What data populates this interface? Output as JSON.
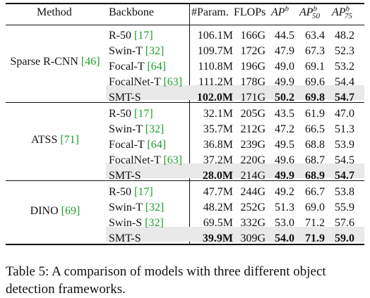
{
  "header": {
    "method": "Method",
    "backbone": "Backbone",
    "param": "#Param.",
    "flops": "FLOPs",
    "ap": "AP",
    "ap_sup": "b",
    "ap50": "AP",
    "ap50_sup": "b",
    "ap50_sub": "50",
    "ap75": "AP",
    "ap75_sup": "b",
    "ap75_sub": "75"
  },
  "groups": [
    {
      "method": "Sparse R-CNN",
      "method_cite": "[46]",
      "rows": [
        {
          "backbone": "R-50",
          "cite": "[17]",
          "param": "106.1M",
          "flops": "166G",
          "ap": "44.5",
          "ap50": "63.4",
          "ap75": "48.2"
        },
        {
          "backbone": "Swin-T",
          "cite": "[32]",
          "param": "109.7M",
          "flops": "172G",
          "ap": "47.9",
          "ap50": "67.3",
          "ap75": "52.3"
        },
        {
          "backbone": "Focal-T",
          "cite": "[64]",
          "param": "110.8M",
          "flops": "196G",
          "ap": "49.0",
          "ap50": "69.1",
          "ap75": "53.2"
        },
        {
          "backbone": "FocalNet-T",
          "cite": "[63]",
          "param": "111.2M",
          "flops": "178G",
          "ap": "49.9",
          "ap50": "69.6",
          "ap75": "54.4"
        },
        {
          "backbone": "SMT-S",
          "cite": "",
          "param": "102.0M",
          "flops": "171G",
          "ap": "50.2",
          "ap50": "69.8",
          "ap75": "54.7"
        }
      ]
    },
    {
      "method": "ATSS",
      "method_cite": "[71]",
      "rows": [
        {
          "backbone": "R-50",
          "cite": "[17]",
          "param": "32.1M",
          "flops": "205G",
          "ap": "43.5",
          "ap50": "61.9",
          "ap75": "47.0"
        },
        {
          "backbone": "Swin-T",
          "cite": "[32]",
          "param": "35.7M",
          "flops": "212G",
          "ap": "47.2",
          "ap50": "66.5",
          "ap75": "51.3"
        },
        {
          "backbone": "Focal-T",
          "cite": "[64]",
          "param": "36.8M",
          "flops": "239G",
          "ap": "49.5",
          "ap50": "68.8",
          "ap75": "53.9"
        },
        {
          "backbone": "FocalNet-T",
          "cite": "[63]",
          "param": "37.2M",
          "flops": "220G",
          "ap": "49.6",
          "ap50": "68.7",
          "ap75": "54.5"
        },
        {
          "backbone": "SMT-S",
          "cite": "",
          "param": "28.0M",
          "flops": "214G",
          "ap": "49.9",
          "ap50": "68.9",
          "ap75": "54.7"
        }
      ]
    },
    {
      "method": "DINO",
      "method_cite": "[69]",
      "rows": [
        {
          "backbone": "R-50",
          "cite": "[17]",
          "param": "47.7M",
          "flops": "244G",
          "ap": "49.2",
          "ap50": "66.7",
          "ap75": "53.8"
        },
        {
          "backbone": "Swin-T",
          "cite": "[32]",
          "param": "48.2M",
          "flops": "252G",
          "ap": "51.3",
          "ap50": "69.0",
          "ap75": "55.9"
        },
        {
          "backbone": "Swin-S",
          "cite": "[32]",
          "param": "69.5M",
          "flops": "332G",
          "ap": "53.0",
          "ap50": "71.2",
          "ap75": "57.6"
        },
        {
          "backbone": "SMT-S",
          "cite": "",
          "param": "39.9M",
          "flops": "309G",
          "ap": "54.0",
          "ap50": "71.9",
          "ap75": "59.0"
        }
      ]
    }
  ],
  "caption": "Table 5: A comparison of models with three different object detection frameworks."
}
